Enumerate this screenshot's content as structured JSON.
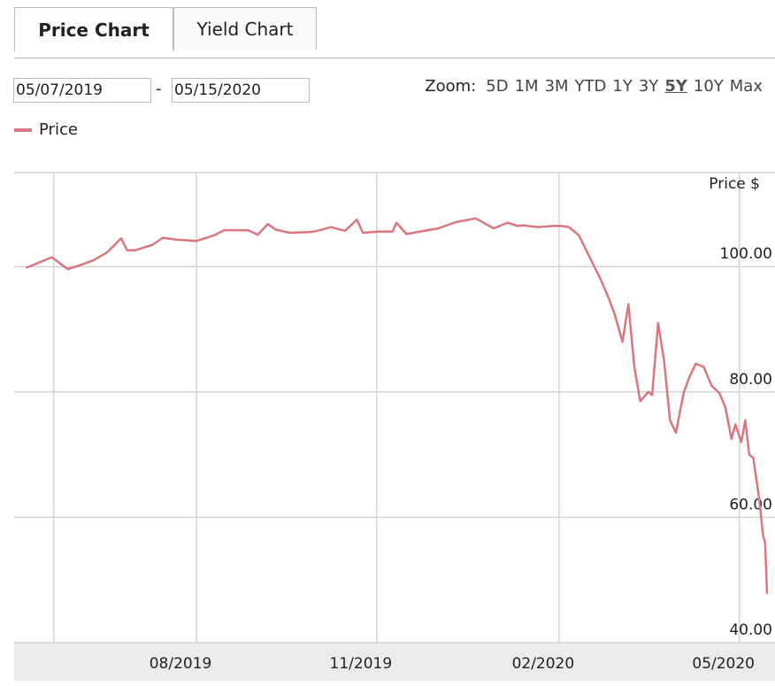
{
  "tabs": [
    {
      "label": "Price Chart",
      "active": true
    },
    {
      "label": "Yield Chart",
      "active": false
    }
  ],
  "date_range": {
    "from": "05/07/2019",
    "separator": "-",
    "to": "05/15/2020"
  },
  "zoom": {
    "label": "Zoom:",
    "options": [
      "5D",
      "1M",
      "3M",
      "YTD",
      "1Y",
      "3Y",
      "5Y",
      "10Y",
      "Max"
    ],
    "active": "5Y"
  },
  "legend": {
    "label": "Price",
    "color": "#d9767f"
  },
  "chart_data": {
    "type": "line",
    "ylabel": "Price $",
    "ylim": [
      40,
      115
    ],
    "yticks": [
      "100.00",
      "80.00",
      "60.00",
      "40.00"
    ],
    "xticks": [
      "08/2019",
      "11/2019",
      "02/2020",
      "05/2020"
    ],
    "grid": true,
    "series": [
      {
        "name": "Price",
        "color": "#d9767f",
        "x": [
          "2019-05-07",
          "2019-05-20",
          "2019-05-28",
          "2019-06-03",
          "2019-06-10",
          "2019-06-17",
          "2019-06-24",
          "2019-06-27",
          "2019-07-01",
          "2019-07-10",
          "2019-07-15",
          "2019-07-22",
          "2019-08-01",
          "2019-08-10",
          "2019-08-15",
          "2019-08-20",
          "2019-08-27",
          "2019-09-01",
          "2019-09-06",
          "2019-09-10",
          "2019-09-17",
          "2019-09-27",
          "2019-10-01",
          "2019-10-08",
          "2019-10-15",
          "2019-10-21",
          "2019-10-24",
          "2019-11-01",
          "2019-11-08",
          "2019-11-10",
          "2019-11-15",
          "2019-11-22",
          "2019-12-01",
          "2019-12-10",
          "2019-12-20",
          "2019-12-29",
          "2020-01-05",
          "2020-01-10",
          "2020-01-13",
          "2020-01-20",
          "2020-01-28",
          "2020-02-01",
          "2020-02-05",
          "2020-02-10",
          "2020-02-17",
          "2020-02-21",
          "2020-02-25",
          "2020-02-28",
          "2020-03-03",
          "2020-03-06",
          "2020-03-09",
          "2020-03-12",
          "2020-03-16",
          "2020-03-18",
          "2020-03-21",
          "2020-03-24",
          "2020-03-27",
          "2020-03-30",
          "2020-04-03",
          "2020-04-06",
          "2020-04-09",
          "2020-04-13",
          "2020-04-17",
          "2020-04-21",
          "2020-04-24",
          "2020-04-27",
          "2020-04-29",
          "2020-05-02",
          "2020-05-04",
          "2020-05-06",
          "2020-05-08",
          "2020-05-11",
          "2020-05-13",
          "2020-05-14",
          "2020-05-15"
        ],
        "y": [
          99.8,
          101.5,
          99.6,
          100.2,
          101.0,
          102.3,
          104.5,
          102.6,
          102.6,
          103.5,
          104.6,
          104.3,
          104.1,
          105.0,
          105.8,
          105.8,
          105.8,
          105.1,
          106.8,
          105.9,
          105.4,
          105.5,
          105.7,
          106.3,
          105.7,
          107.5,
          105.4,
          105.6,
          105.6,
          107.0,
          105.2,
          105.6,
          106.1,
          107.1,
          107.7,
          106.1,
          107.0,
          106.5,
          106.6,
          106.3,
          106.5,
          106.5,
          106.3,
          105.0,
          100.5,
          98.0,
          95.0,
          92.5,
          88.0,
          94.0,
          84.0,
          78.5,
          80.0,
          79.5,
          91.0,
          85.0,
          75.5,
          73.5,
          80.0,
          82.5,
          84.5,
          84.0,
          81.0,
          79.8,
          77.5,
          72.5,
          74.8,
          72.0,
          75.5,
          70.0,
          69.5,
          63.0,
          57.0,
          56.0,
          47.8
        ]
      }
    ]
  }
}
